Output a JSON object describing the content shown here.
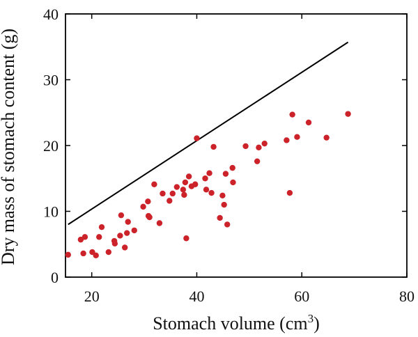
{
  "chart_data": {
    "type": "scatter",
    "xlabel": "Stomach volume (cm",
    "xlabel_sup": "3",
    "xlabel_suffix": ")",
    "ylabel": "Dry mass of stomach content (g)",
    "xlim": [
      15,
      80
    ],
    "ylim": [
      0,
      40
    ],
    "x_ticks": [
      "20",
      "40",
      "60",
      "80"
    ],
    "y_ticks": [
      "0",
      "10",
      "20",
      "30",
      "40"
    ],
    "grid": false,
    "legend": "none",
    "point_color": "#cc2229",
    "line_color": "#000000",
    "series": [
      {
        "type": "scatter",
        "points": [
          [
            15.5,
            3.4
          ],
          [
            17.9,
            5.7
          ],
          [
            18.4,
            3.6
          ],
          [
            18.7,
            6.1
          ],
          [
            20.1,
            3.8
          ],
          [
            20.8,
            3.3
          ],
          [
            21.4,
            6.1
          ],
          [
            21.9,
            7.6
          ],
          [
            23.2,
            3.8
          ],
          [
            24.3,
            5.5
          ],
          [
            24.4,
            5.1
          ],
          [
            25.4,
            6.3
          ],
          [
            25.6,
            9.4
          ],
          [
            26.3,
            4.5
          ],
          [
            26.7,
            6.7
          ],
          [
            26.9,
            8.4
          ],
          [
            28.1,
            7.1
          ],
          [
            29.8,
            10.7
          ],
          [
            30.7,
            11.5
          ],
          [
            30.8,
            9.3
          ],
          [
            31.0,
            9.1
          ],
          [
            31.9,
            14.1
          ],
          [
            32.9,
            8.2
          ],
          [
            33.5,
            12.7
          ],
          [
            34.8,
            11.6
          ],
          [
            35.4,
            12.7
          ],
          [
            36.2,
            13.7
          ],
          [
            37.4,
            13.3
          ],
          [
            37.6,
            12.5
          ],
          [
            37.8,
            14.4
          ],
          [
            38.0,
            5.9
          ],
          [
            38.5,
            15.3
          ],
          [
            39.0,
            13.8
          ],
          [
            39.7,
            14.1
          ],
          [
            40.0,
            21.1
          ],
          [
            41.6,
            15.0
          ],
          [
            41.8,
            13.3
          ],
          [
            42.4,
            15.8
          ],
          [
            42.8,
            12.8
          ],
          [
            43.2,
            19.8
          ],
          [
            44.4,
            9.0
          ],
          [
            44.9,
            12.4
          ],
          [
            45.2,
            11.0
          ],
          [
            45.5,
            15.7
          ],
          [
            45.8,
            8.0
          ],
          [
            46.8,
            16.6
          ],
          [
            46.9,
            14.4
          ],
          [
            49.3,
            19.9
          ],
          [
            51.5,
            17.6
          ],
          [
            51.8,
            19.7
          ],
          [
            52.9,
            20.3
          ],
          [
            57.1,
            20.8
          ],
          [
            57.7,
            12.8
          ],
          [
            58.2,
            24.7
          ],
          [
            59.1,
            21.3
          ],
          [
            61.3,
            23.5
          ],
          [
            64.7,
            21.2
          ],
          [
            68.8,
            24.8
          ]
        ]
      },
      {
        "type": "line",
        "points": [
          [
            15.5,
            8.0
          ],
          [
            68.8,
            35.7
          ]
        ]
      }
    ]
  }
}
